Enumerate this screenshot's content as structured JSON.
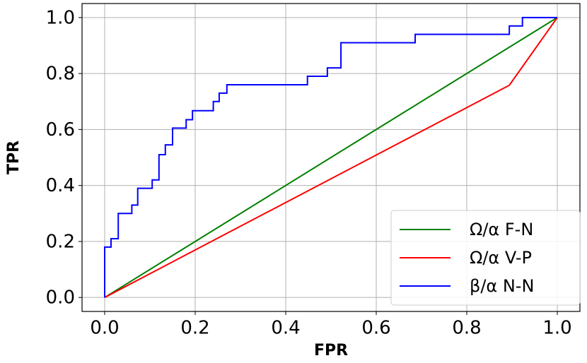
{
  "chart_data": {
    "type": "line",
    "xlabel": "FPR",
    "ylabel": "TPR",
    "xlim": [
      -0.05,
      1.05
    ],
    "ylim": [
      -0.05,
      1.05
    ],
    "xticks": [
      {
        "value": 0,
        "label": "0.0"
      },
      0.2,
      0.4,
      0.6,
      0.8,
      {
        "value": 1,
        "label": "1.0"
      }
    ],
    "yticks": [
      {
        "value": 0,
        "label": "0.0"
      },
      0.2,
      0.4,
      0.6,
      0.8,
      {
        "value": 1,
        "label": "1.0"
      }
    ],
    "grid": true,
    "legend": "lower right",
    "series": [
      {
        "name": "Ω/α F-N",
        "color": "#008000",
        "x": [
          0,
          1
        ],
        "values": [
          0,
          1
        ]
      },
      {
        "name": "Ω/α V-P",
        "color": "#ff0000",
        "x": [
          0,
          0.894,
          1
        ],
        "values": [
          0,
          0.758,
          1
        ]
      },
      {
        "name": "β/α N-N",
        "color": "#0000ff",
        "x": [
          0,
          0,
          0.014,
          0.014,
          0.03,
          0.03,
          0.06,
          0.06,
          0.073,
          0.073,
          0.105,
          0.105,
          0.12,
          0.12,
          0.134,
          0.134,
          0.15,
          0.15,
          0.18,
          0.18,
          0.194,
          0.194,
          0.24,
          0.24,
          0.253,
          0.253,
          0.27,
          0.27,
          0.448,
          0.448,
          0.492,
          0.492,
          0.522,
          0.522,
          0.686,
          0.686,
          0.894,
          0.894,
          0.923,
          0.923,
          1
        ],
        "values": [
          0,
          0.18,
          0.18,
          0.21,
          0.21,
          0.3,
          0.3,
          0.33,
          0.33,
          0.39,
          0.39,
          0.42,
          0.42,
          0.51,
          0.51,
          0.545,
          0.545,
          0.605,
          0.605,
          0.635,
          0.635,
          0.667,
          0.667,
          0.7,
          0.7,
          0.73,
          0.73,
          0.76,
          0.76,
          0.79,
          0.79,
          0.82,
          0.82,
          0.91,
          0.91,
          0.94,
          0.94,
          0.97,
          0.97,
          1.0,
          1.0
        ]
      }
    ]
  }
}
